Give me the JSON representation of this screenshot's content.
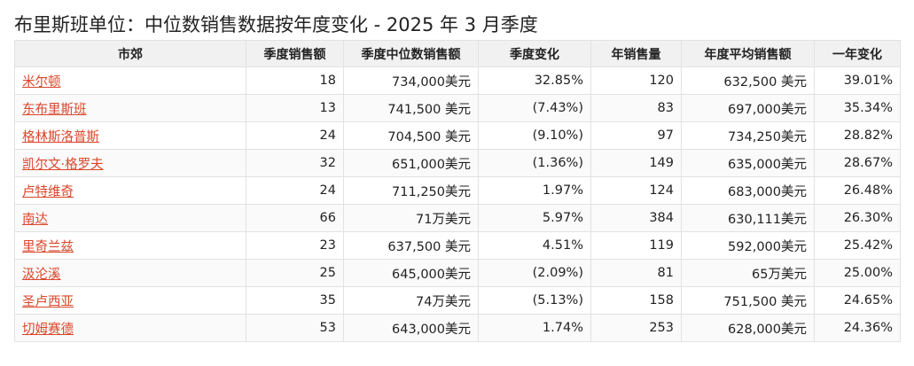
{
  "title": "布里斯班单位：中位数销售数据按年度变化 - 2025 年 3 月季度",
  "table": {
    "headers": [
      "市郊",
      "季度销售额",
      "季度中位数销售额",
      "季度变化",
      "年销售量",
      "年度平均销售额",
      "一年变化"
    ],
    "rows": [
      {
        "suburb": "米尔顿",
        "quarter_sales": "18",
        "quarter_median": "734,000美元",
        "quarter_change": "32.85%",
        "annual_volume": "120",
        "annual_avg": "632,500 美元",
        "annual_change": "39.01%"
      },
      {
        "suburb": "东布里斯班",
        "quarter_sales": "13",
        "quarter_median": "741,500 美元",
        "quarter_change": "(7.43%)",
        "annual_volume": "83",
        "annual_avg": "697,000美元",
        "annual_change": "35.34%"
      },
      {
        "suburb": "格林斯洛普斯",
        "quarter_sales": "24",
        "quarter_median": "704,500 美元",
        "quarter_change": "(9.10%)",
        "annual_volume": "97",
        "annual_avg": "734,250美元",
        "annual_change": "28.82%"
      },
      {
        "suburb": "凯尔文·格罗夫",
        "quarter_sales": "32",
        "quarter_median": "651,000美元",
        "quarter_change": "(1.36%)",
        "annual_volume": "149",
        "annual_avg": "635,000美元",
        "annual_change": "28.67%"
      },
      {
        "suburb": "卢特维奇",
        "quarter_sales": "24",
        "quarter_median": "711,250美元",
        "quarter_change": "1.97%",
        "annual_volume": "124",
        "annual_avg": "683,000美元",
        "annual_change": "26.48%"
      },
      {
        "suburb": "南达",
        "quarter_sales": "66",
        "quarter_median": "71万美元",
        "quarter_change": "5.97%",
        "annual_volume": "384",
        "annual_avg": "630,111美元",
        "annual_change": "26.30%"
      },
      {
        "suburb": "里奇兰兹",
        "quarter_sales": "23",
        "quarter_median": "637,500 美元",
        "quarter_change": "4.51%",
        "annual_volume": "119",
        "annual_avg": "592,000美元",
        "annual_change": "25.42%"
      },
      {
        "suburb": "汲沦溪",
        "quarter_sales": "25",
        "quarter_median": "645,000美元",
        "quarter_change": "(2.09%)",
        "annual_volume": "81",
        "annual_avg": "65万美元",
        "annual_change": "25.00%"
      },
      {
        "suburb": "圣卢西亚",
        "quarter_sales": "35",
        "quarter_median": "74万美元",
        "quarter_change": "(5.13%)",
        "annual_volume": "158",
        "annual_avg": "751,500 美元",
        "annual_change": "24.65%"
      },
      {
        "suburb": "切姆赛德",
        "quarter_sales": "53",
        "quarter_median": "643,000美元",
        "quarter_change": "1.74%",
        "annual_volume": "253",
        "annual_avg": "628,000美元",
        "annual_change": "24.36%"
      }
    ]
  },
  "colors": {
    "link": "#d9472b",
    "header_bg": "#f1f1f1",
    "border": "#e2e2e2"
  }
}
